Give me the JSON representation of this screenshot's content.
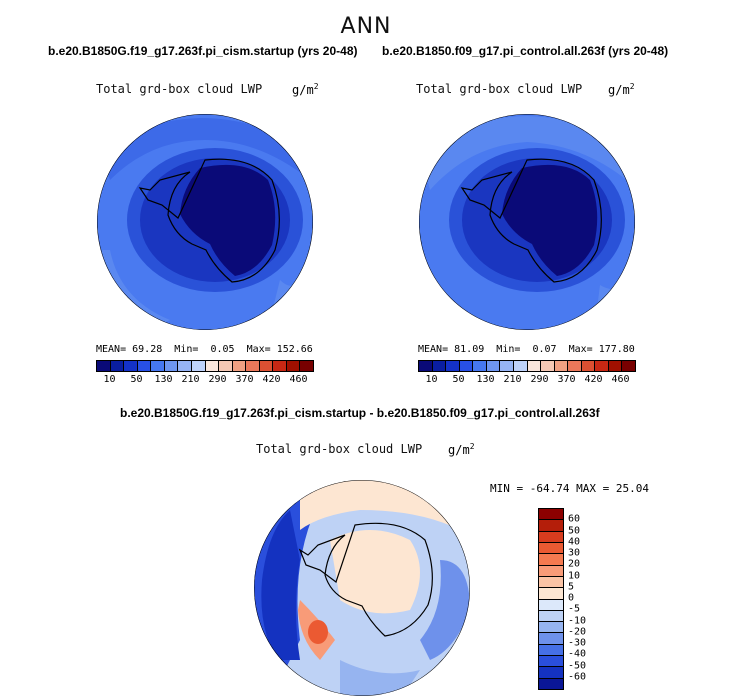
{
  "figure": {
    "season": "ANN",
    "panel1": {
      "case": "b.e20.B1850G.f19_g17.263f.pi_cism.startup (yrs 20-48)",
      "variable": "Total grd-box cloud LWP",
      "units": "g/m",
      "units_exp": "2",
      "mean_label": "MEAN=",
      "mean": "69.28",
      "min_label": "Min=",
      "min": "0.05",
      "max_label": "Max=",
      "max": "152.66"
    },
    "panel2": {
      "case": "b.e20.B1850.f09_g17.pi_control.all.263f (yrs 20-48)",
      "variable": "Total grd-box cloud LWP",
      "units": "g/m",
      "units_exp": "2",
      "mean_label": "MEAN=",
      "mean": "81.09",
      "min_label": "Min=",
      "min": "0.07",
      "max_label": "Max=",
      "max": "177.80"
    },
    "panel3": {
      "case": "b.e20.B1850G.f19_g17.263f.pi_cism.startup - b.e20.B1850.f09_g17.pi_control.all.263f",
      "variable": "Total grd-box cloud LWP",
      "units": "g/m",
      "units_exp": "2",
      "minmax": "MIN = -64.74  MAX =  25.04"
    },
    "abs_colorbar": {
      "labels": [
        "10",
        "50",
        "130",
        "210",
        "290",
        "370",
        "420",
        "460"
      ],
      "colors": [
        "#0a0a78",
        "#0a1ea0",
        "#1432c8",
        "#2850e6",
        "#4678f0",
        "#6e96f0",
        "#96b4f5",
        "#bed2fa",
        "#fae6dc",
        "#f5c8b4",
        "#f0a082",
        "#eb785a",
        "#dc5032",
        "#c82814",
        "#a01000",
        "#780000"
      ]
    },
    "diff_colorbar": {
      "labels": [
        "60",
        "50",
        "40",
        "30",
        "20",
        "10",
        "5",
        "0",
        "-5",
        "-10",
        "-20",
        "-30",
        "-40",
        "-50",
        "-60"
      ],
      "colors": [
        "#8c0000",
        "#b41e0a",
        "#d73c1e",
        "#eb5a32",
        "#f57a50",
        "#f89b78",
        "#fac3a5",
        "#fde6d2",
        "#dce8fa",
        "#bed2f5",
        "#96b4f0",
        "#6e91eb",
        "#4670e6",
        "#2a4fdc",
        "#1432c0",
        "#0a1696"
      ]
    }
  }
}
